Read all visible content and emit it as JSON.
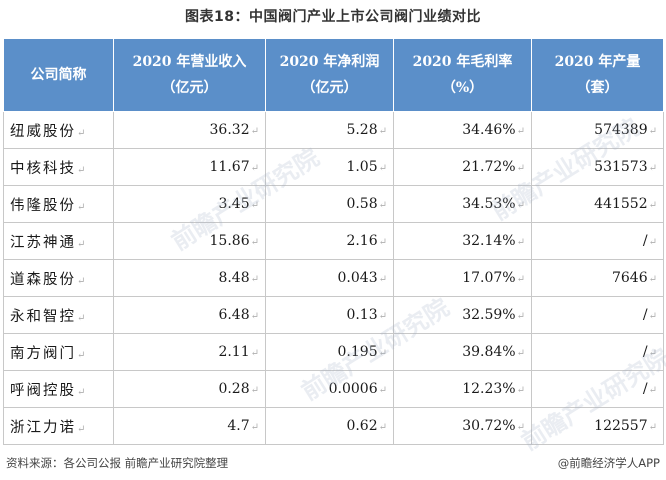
{
  "title": "图表18：中国阀门产业上市公司阀门业绩对比",
  "row_end_mark": "↵",
  "table": {
    "headers": [
      {
        "line1": "公司简称",
        "line2": ""
      },
      {
        "line1": "2020 年营业收入",
        "line2": "（亿元）"
      },
      {
        "line1": "2020 年净利润",
        "line2": "（亿元）"
      },
      {
        "line1": "2020 年毛利率",
        "line2": "（%）"
      },
      {
        "line1": "2020 年产量",
        "line2": "（套）"
      }
    ],
    "rows": [
      [
        "纽威股份",
        "36.32",
        "5.28",
        "34.46%",
        "574389"
      ],
      [
        "中核科技",
        "11.67",
        "1.05",
        "21.72%",
        "531573"
      ],
      [
        "伟隆股份",
        "3.45",
        "0.58",
        "34.53%",
        "441552"
      ],
      [
        "江苏神通",
        "15.86",
        "2.16",
        "32.14%",
        "/"
      ],
      [
        "道森股份",
        "8.48",
        "0.043",
        "17.07%",
        "7646"
      ],
      [
        "永和智控",
        "6.48",
        "0.13",
        "32.59%",
        "/"
      ],
      [
        "南方阀门",
        "2.11",
        "0.195",
        "39.84%",
        "/"
      ],
      [
        "呼阀控股",
        "0.28",
        "0.0006",
        "12.23%",
        "/"
      ],
      [
        "浙江力诺",
        "4.7",
        "0.62",
        "30.72%",
        "122557"
      ]
    ]
  },
  "footer": {
    "source": "资料来源：各公司公报 前瞻产业研究院整理",
    "brand": "@前瞻经济学人APP"
  },
  "watermark": "前瞻产业研究院"
}
